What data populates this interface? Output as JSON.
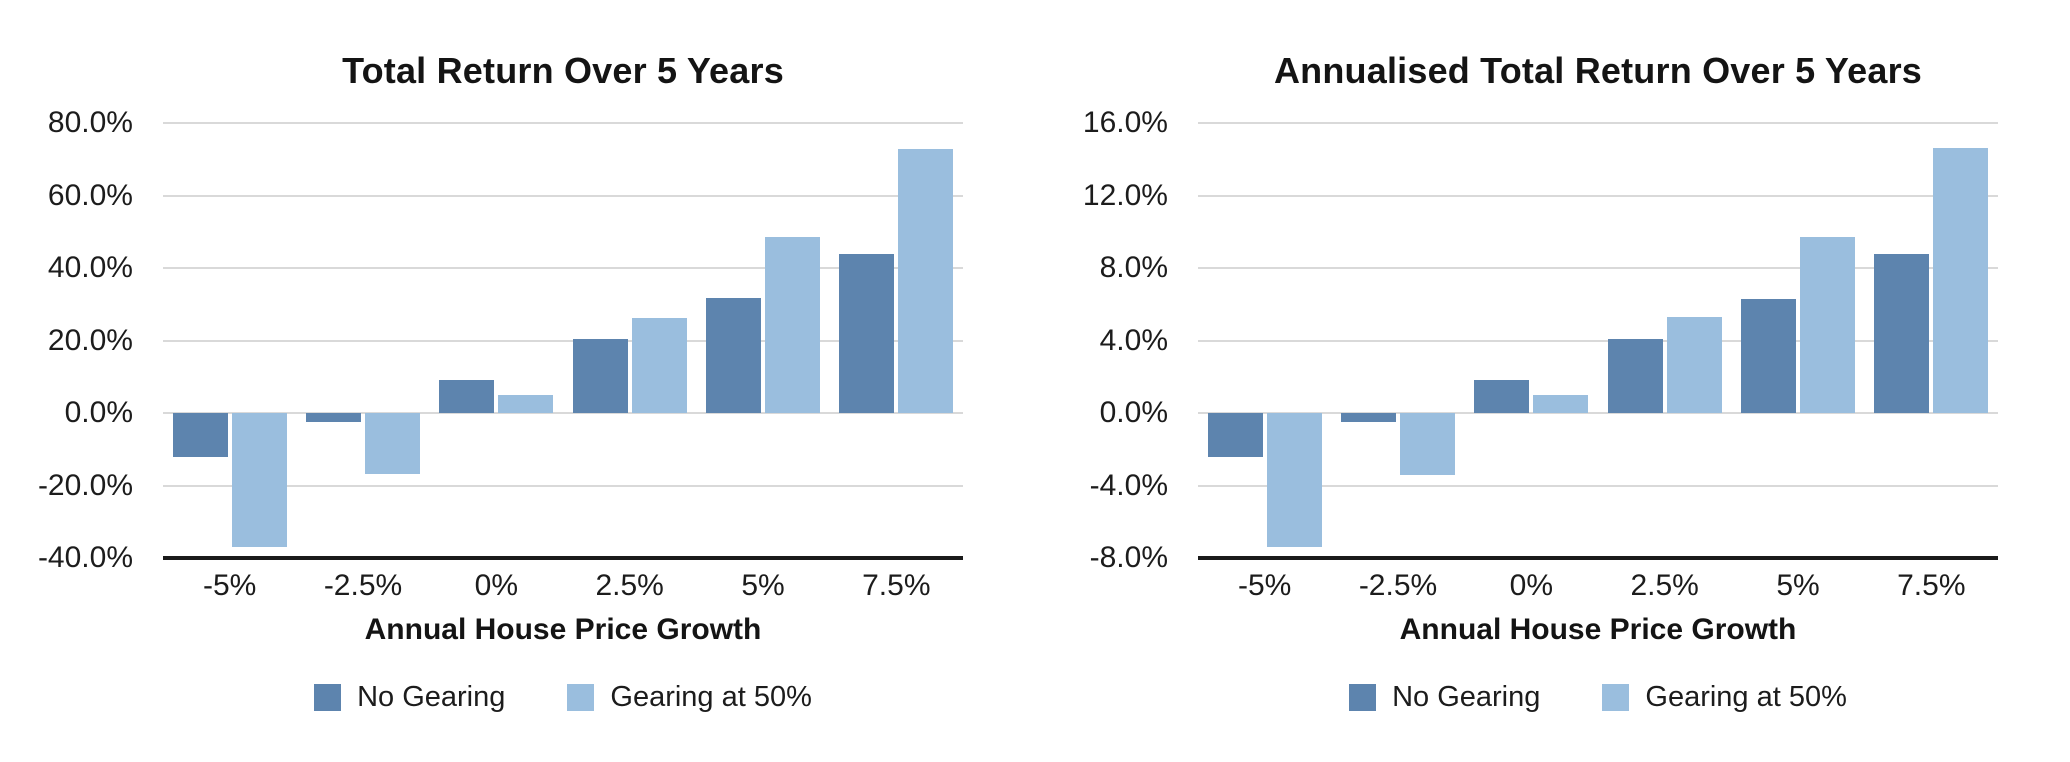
{
  "colors": {
    "no_gearing": "#5D84AE",
    "gearing_50": "#9ABEDE",
    "gridline": "#D9D9D9",
    "axis_line": "#1A1A1A",
    "text": "#1C1C1C"
  },
  "chart_data": [
    {
      "type": "bar",
      "title": "Total Return Over 5 Years",
      "xlabel": "Annual House Price Growth",
      "ylabel": "",
      "categories": [
        "-5%",
        "-2.5%",
        "0%",
        "2.5%",
        "5%",
        "7.5%"
      ],
      "series": [
        {
          "name": "No Gearing",
          "color": "#5D84AE",
          "values": [
            -12.1,
            -2.4,
            9.2,
            20.4,
            31.6,
            44.0
          ]
        },
        {
          "name": "Gearing at 50%",
          "color": "#9ABEDE",
          "values": [
            -37.0,
            -16.8,
            5.0,
            26.3,
            48.6,
            72.9
          ]
        }
      ],
      "ylim": [
        -40,
        80
      ],
      "ytick_step": 20,
      "ytick_labels": [
        "80.0%",
        "60.0%",
        "40.0%",
        "20.0%",
        "0.0%",
        "-20.0%",
        "-40.0%"
      ],
      "grid": true,
      "legend_position": "bottom"
    },
    {
      "type": "bar",
      "title": "Annualised Total Return Over 5 Years",
      "xlabel": "Annual House Price Growth",
      "ylabel": "",
      "categories": [
        "-5%",
        "-2.5%",
        "0%",
        "2.5%",
        "5%",
        "7.5%"
      ],
      "series": [
        {
          "name": "No Gearing",
          "color": "#5D84AE",
          "values": [
            -2.4,
            -0.5,
            1.8,
            4.1,
            6.3,
            8.8
          ]
        },
        {
          "name": "Gearing at 50%",
          "color": "#9ABEDE",
          "values": [
            -7.4,
            -3.4,
            1.0,
            5.3,
            9.7,
            14.6
          ]
        }
      ],
      "ylim": [
        -8,
        16
      ],
      "ytick_step": 4,
      "ytick_labels": [
        "16.0%",
        "12.0%",
        "8.0%",
        "4.0%",
        "0.0%",
        "-4.0%",
        "-8.0%"
      ],
      "grid": true,
      "legend_position": "bottom"
    }
  ]
}
